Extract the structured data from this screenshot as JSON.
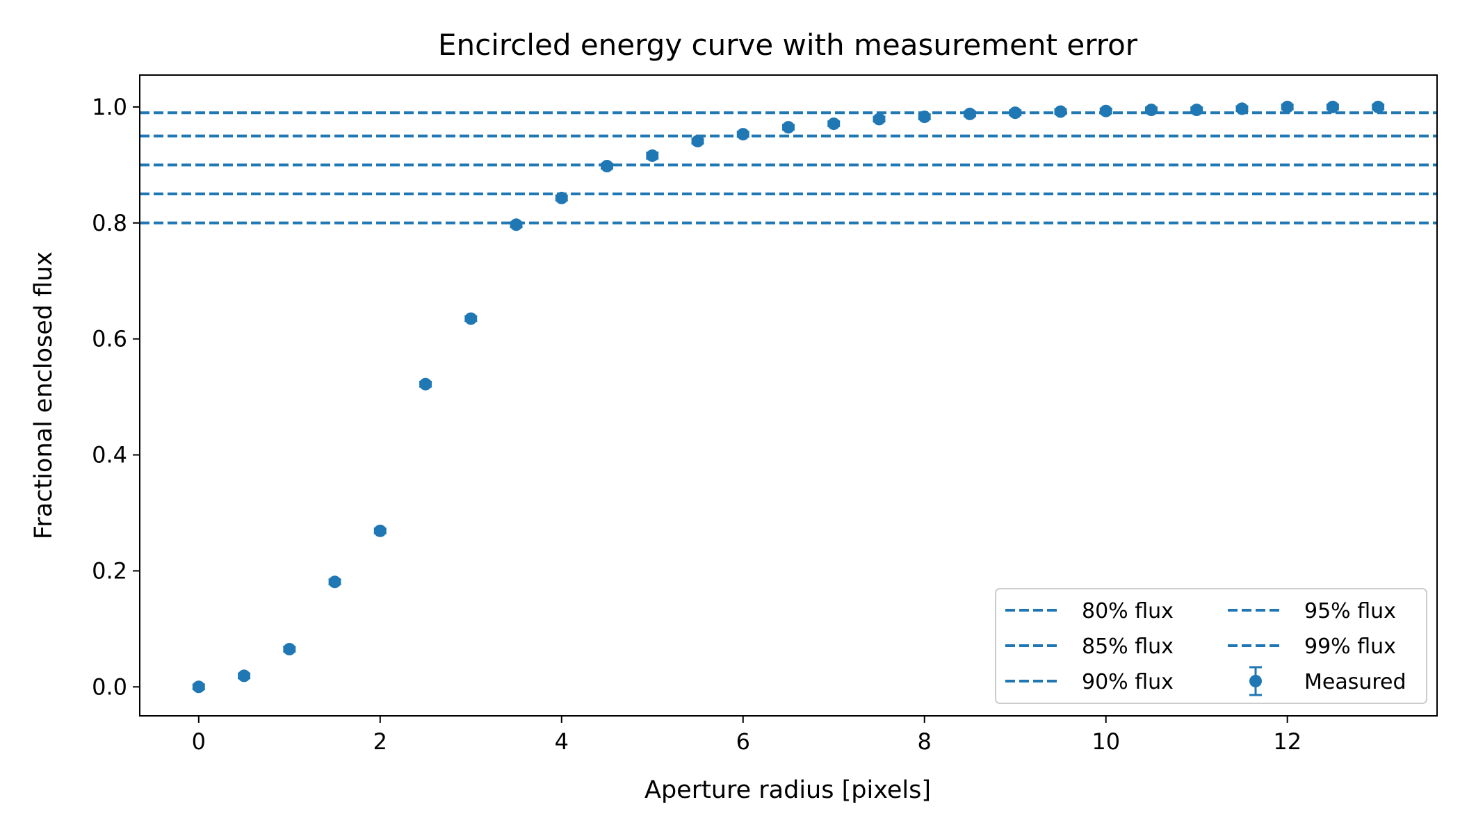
{
  "chart_data": {
    "type": "scatter",
    "title": "Encircled energy curve with measurement error",
    "xlabel": "Aperture radius [pixels]",
    "ylabel": "Fractional enclosed flux",
    "xlim": [
      -0.65,
      13.65
    ],
    "ylim": [
      -0.05,
      1.055
    ],
    "x_ticks": [
      0,
      2,
      4,
      6,
      8,
      10,
      12
    ],
    "x_tick_labels": [
      "0",
      "2",
      "4",
      "6",
      "8",
      "10",
      "12"
    ],
    "y_ticks": [
      0.0,
      0.2,
      0.4,
      0.6,
      0.8,
      1.0
    ],
    "y_tick_labels": [
      "0.0",
      "0.2",
      "0.4",
      "0.6",
      "0.8",
      "1.0"
    ],
    "grid": false,
    "legend_position": "lower-right",
    "color": "#1f77b4",
    "measured": {
      "name": "Measured",
      "x": [
        0,
        0.5,
        1,
        1.5,
        2,
        2.5,
        3,
        3.5,
        4,
        4.5,
        5,
        5.5,
        6,
        6.5,
        7,
        7.5,
        8,
        8.5,
        9,
        9.5,
        10,
        10.5,
        11,
        11.5,
        12,
        12.5,
        13
      ],
      "y": [
        0.0,
        0.019,
        0.065,
        0.181,
        0.269,
        0.522,
        0.635,
        0.797,
        0.843,
        0.898,
        0.916,
        0.941,
        0.953,
        0.965,
        0.971,
        0.979,
        0.983,
        0.988,
        0.99,
        0.992,
        0.993,
        0.995,
        0.995,
        0.997,
        1.0,
        1.0,
        1.0
      ],
      "yerr": [
        0.004,
        0.004,
        0.004,
        0.004,
        0.004,
        0.004,
        0.004,
        0.004,
        0.004,
        0.004,
        0.005,
        0.004,
        0.004,
        0.004,
        0.004,
        0.004,
        0.004,
        0.004,
        0.004,
        0.004,
        0.004,
        0.004,
        0.004,
        0.004,
        0.004,
        0.004,
        0.004
      ]
    },
    "thresholds": [
      {
        "name": "80% flux",
        "value": 0.8
      },
      {
        "name": "85% flux",
        "value": 0.85
      },
      {
        "name": "90% flux",
        "value": 0.9
      },
      {
        "name": "95% flux",
        "value": 0.95
      },
      {
        "name": "99% flux",
        "value": 0.99
      }
    ],
    "legend_order": [
      "80% flux",
      "85% flux",
      "90% flux",
      "95% flux",
      "99% flux",
      "Measured"
    ]
  }
}
